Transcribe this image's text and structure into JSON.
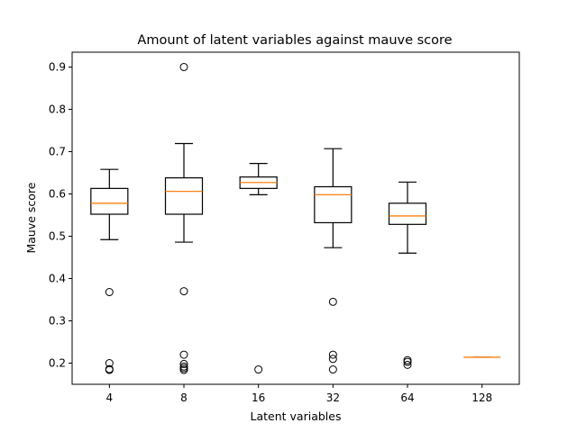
{
  "chart_data": {
    "type": "box",
    "title": "Amount of latent variables against mauve score",
    "xlabel": "Latent variables",
    "ylabel": "Mauve score",
    "ylim": [
      0.15,
      0.935
    ],
    "yticks": [
      0.2,
      0.3,
      0.4,
      0.5,
      0.6,
      0.7,
      0.8,
      0.9
    ],
    "ytick_labels": [
      "0.2",
      "0.3",
      "0.4",
      "0.5",
      "0.6",
      "0.7",
      "0.8",
      "0.9"
    ],
    "grid": false,
    "categories": [
      "4",
      "8",
      "16",
      "32",
      "64",
      "128"
    ],
    "boxes": [
      {
        "whislo": 0.492,
        "q1": 0.552,
        "med": 0.578,
        "q3": 0.613,
        "whishi": 0.658,
        "fliers": [
          0.368,
          0.2,
          0.186,
          0.184
        ]
      },
      {
        "whislo": 0.486,
        "q1": 0.552,
        "med": 0.606,
        "q3": 0.638,
        "whishi": 0.719,
        "fliers": [
          0.9,
          0.37,
          0.22,
          0.198,
          0.192,
          0.188,
          0.184
        ]
      },
      {
        "whislo": 0.598,
        "q1": 0.613,
        "med": 0.627,
        "q3": 0.64,
        "whishi": 0.672,
        "fliers": [
          0.185
        ]
      },
      {
        "whislo": 0.473,
        "q1": 0.532,
        "med": 0.598,
        "q3": 0.617,
        "whishi": 0.707,
        "fliers": [
          0.345,
          0.22,
          0.21,
          0.185
        ]
      },
      {
        "whislo": 0.46,
        "q1": 0.528,
        "med": 0.548,
        "q3": 0.578,
        "whishi": 0.628,
        "fliers": [
          0.207,
          0.203,
          0.196
        ]
      },
      {
        "whislo": 0.214,
        "q1": 0.214,
        "med": 0.214,
        "q3": 0.214,
        "whishi": 0.214,
        "fliers": []
      }
    ],
    "colors": {
      "box": "#000000",
      "median": "#ff7f0e",
      "flier": "#000000"
    }
  }
}
